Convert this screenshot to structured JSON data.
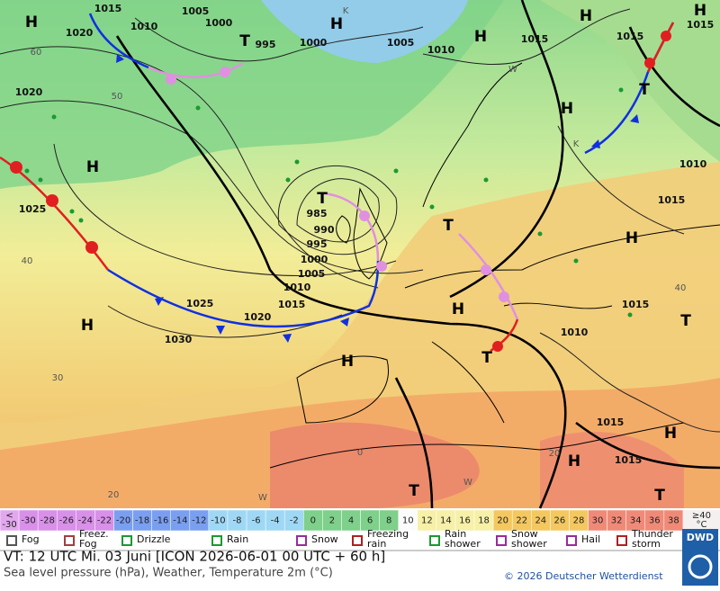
{
  "map": {
    "pressure_labels": [
      "1015",
      "1005",
      "1010",
      "1020",
      "1000",
      "995",
      "1000",
      "1005",
      "1010",
      "1015",
      "1015",
      "1015",
      "1020",
      "985",
      "990",
      "995",
      "1000",
      "1005",
      "1010",
      "1015",
      "1025",
      "1020",
      "1030",
      "1025",
      "1010",
      "1015",
      "1015",
      "1010",
      "1015",
      "1015"
    ],
    "centers": [
      "H",
      "T",
      "H",
      "H",
      "H",
      "H",
      "H",
      "T",
      "H",
      "T",
      "T",
      "H",
      "T",
      "H",
      "H",
      "H",
      "T",
      "H",
      "H",
      "T",
      "T"
    ],
    "grid_labels": [
      "60",
      "50",
      "40",
      "30",
      "20",
      "0",
      "40",
      "20",
      "W",
      "K",
      "K",
      "W",
      "W"
    ]
  },
  "colorbar": {
    "low": [
      "<",
      "-30"
    ],
    "ticks": [
      -30,
      -28,
      -26,
      -24,
      -22,
      -20,
      -18,
      -16,
      -14,
      -12,
      -10,
      -8,
      -6,
      -4,
      -2,
      0,
      2,
      4,
      6,
      8,
      10,
      12,
      14,
      16,
      18,
      20,
      22,
      24,
      26,
      28,
      30,
      32,
      34,
      36,
      38
    ],
    "high": [
      "≥40",
      "°C"
    ]
  },
  "legend": [
    [
      "Fog"
    ],
    [
      "Freez.",
      "Fog"
    ],
    [
      "Drizzle"
    ],
    [
      "Rain"
    ],
    [
      "Snow"
    ],
    [
      "Freezing",
      "rain"
    ],
    [
      "Rain",
      "shower"
    ],
    [
      "Snow",
      "shower"
    ],
    [
      "Hail"
    ],
    [
      "Thunder",
      "storm"
    ]
  ],
  "footer": {
    "valid_time": "VT: 12 UTC Mi.  03 Juni [ICON 2026-06-01  00 UTC + 60 h]",
    "description": "Sea level pressure (hPa), Weather, Temperature 2m (°C)",
    "copyright": "© 2026 Deutscher Wetterdienst",
    "logo": "DWD"
  }
}
